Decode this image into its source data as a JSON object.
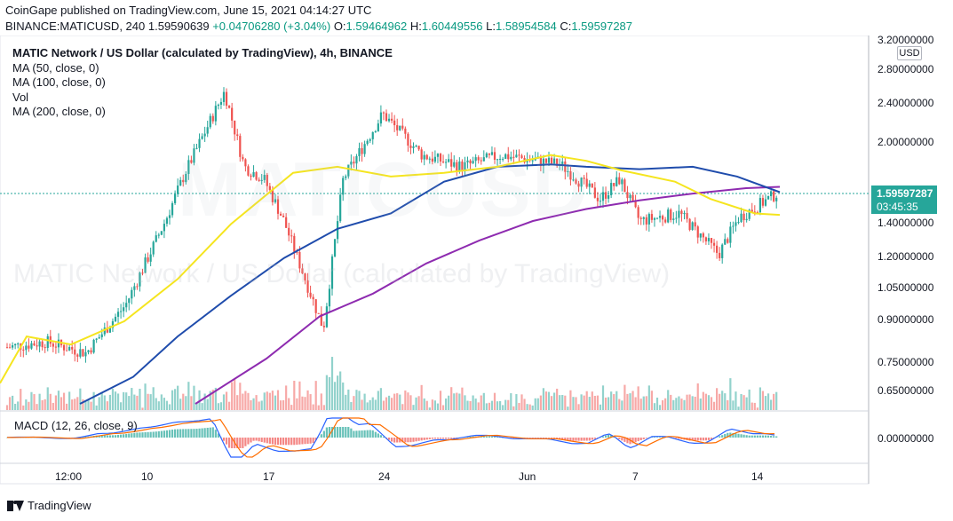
{
  "header": {
    "publisher_line": "CoinGape published on TradingView.com, June 15, 2021 04:14:27 UTC",
    "symbol": "BINANCE:MATICUSD, 240",
    "last_value": "1.59590639",
    "change": "+0.04706280 (+3.04%)",
    "o_label": "O:",
    "o_value": "1.59464962",
    "h_label": "H:",
    "h_value": "1.60449556",
    "l_label": "L:",
    "l_value": "1.58954584",
    "c_label": "C:",
    "c_value": "1.59597287",
    "positive_color": "#089981"
  },
  "legend": {
    "title": "MATIC Network / US Dollar (calculated by TradingView), 4h, BINANCE",
    "ma50": "MA (50, close, 0)",
    "ma100": "MA (100, close, 0)",
    "vol": "Vol",
    "ma200": "MA (200, close, 0)"
  },
  "watermark": {
    "symbol": "MATICUSD",
    "description": "MATIC Network / US Dollar (calculated by TradingView)"
  },
  "macd_label": "MACD (12, 26, close, 9)",
  "price_scale": {
    "currency": "USD",
    "ticks": [
      "3.20000000",
      "2.80000000",
      "2.40000000",
      "2.00000000",
      "1.40000000",
      "1.20000000",
      "1.05000000",
      "0.90000000",
      "0.75000000",
      "0.65000000"
    ],
    "macd_tick": "0.00000000",
    "current_price": "1.59597287",
    "countdown": "03:45:35"
  },
  "time_axis": [
    "12:00",
    "10",
    "17",
    "24",
    "Jun",
    "7",
    "14"
  ],
  "footer": {
    "brand": "TradingView"
  },
  "colors": {
    "up": "#26a69a",
    "down": "#ef5350",
    "ma50": "#f5e51f",
    "ma100": "#1f4cac",
    "ma200": "#8e2bb0",
    "macd": "#2962ff",
    "signal": "#ff6d00"
  },
  "chart_data": {
    "type": "candlestick",
    "interval": "4h",
    "ylim": [
      0.6,
      3.2
    ],
    "y_scale": "log",
    "anchors": [
      {
        "date": "2021-05-07",
        "close": 0.78
      },
      {
        "date": "2021-05-09",
        "close": 0.8
      },
      {
        "date": "2021-05-11",
        "close": 0.76
      },
      {
        "date": "2021-05-13",
        "close": 0.95
      },
      {
        "date": "2021-05-15",
        "close": 1.4
      },
      {
        "date": "2021-05-16",
        "close": 1.75
      },
      {
        "date": "2021-05-18",
        "close": 2.55
      },
      {
        "date": "2021-05-19",
        "close": 1.8
      },
      {
        "date": "2021-05-20",
        "close": 1.7
      },
      {
        "date": "2021-05-21",
        "close": 1.4
      },
      {
        "date": "2021-05-23",
        "close": 0.85
      },
      {
        "date": "2021-05-24",
        "close": 1.7
      },
      {
        "date": "2021-05-26",
        "close": 2.3
      },
      {
        "date": "2021-05-28",
        "close": 1.9
      },
      {
        "date": "2021-05-30",
        "close": 1.8
      },
      {
        "date": "2021-06-01",
        "close": 1.9
      },
      {
        "date": "2021-06-04",
        "close": 1.82
      },
      {
        "date": "2021-06-06",
        "close": 1.55
      },
      {
        "date": "2021-06-07",
        "close": 1.7
      },
      {
        "date": "2021-06-08",
        "close": 1.4
      },
      {
        "date": "2021-06-10",
        "close": 1.45
      },
      {
        "date": "2021-06-12",
        "close": 1.2
      },
      {
        "date": "2021-06-13",
        "close": 1.42
      },
      {
        "date": "2021-06-15",
        "close": 1.596
      }
    ],
    "ma50_points": [
      [
        0,
        0.66
      ],
      [
        30,
        0.82
      ],
      [
        80,
        0.79
      ],
      [
        140,
        0.88
      ],
      [
        200,
        1.07
      ],
      [
        260,
        1.38
      ],
      [
        330,
        1.75
      ],
      [
        380,
        1.8
      ],
      [
        440,
        1.72
      ],
      [
        500,
        1.75
      ],
      [
        560,
        1.8
      ],
      [
        620,
        1.9
      ],
      [
        660,
        1.85
      ],
      [
        700,
        1.77
      ],
      [
        760,
        1.68
      ],
      [
        800,
        1.55
      ],
      [
        850,
        1.45
      ],
      [
        878,
        1.44
      ]
    ],
    "ma100_points": [
      [
        90,
        0.6
      ],
      [
        150,
        0.68
      ],
      [
        200,
        0.82
      ],
      [
        260,
        0.99
      ],
      [
        320,
        1.18
      ],
      [
        380,
        1.35
      ],
      [
        440,
        1.45
      ],
      [
        500,
        1.68
      ],
      [
        560,
        1.8
      ],
      [
        620,
        1.82
      ],
      [
        660,
        1.8
      ],
      [
        720,
        1.78
      ],
      [
        780,
        1.8
      ],
      [
        830,
        1.72
      ],
      [
        878,
        1.6
      ]
    ],
    "ma200_points": [
      [
        220,
        0.6
      ],
      [
        300,
        0.74
      ],
      [
        360,
        0.9
      ],
      [
        420,
        1.0
      ],
      [
        480,
        1.15
      ],
      [
        540,
        1.28
      ],
      [
        600,
        1.4
      ],
      [
        660,
        1.48
      ],
      [
        720,
        1.54
      ],
      [
        780,
        1.59
      ],
      [
        840,
        1.63
      ],
      [
        878,
        1.64
      ]
    ]
  }
}
